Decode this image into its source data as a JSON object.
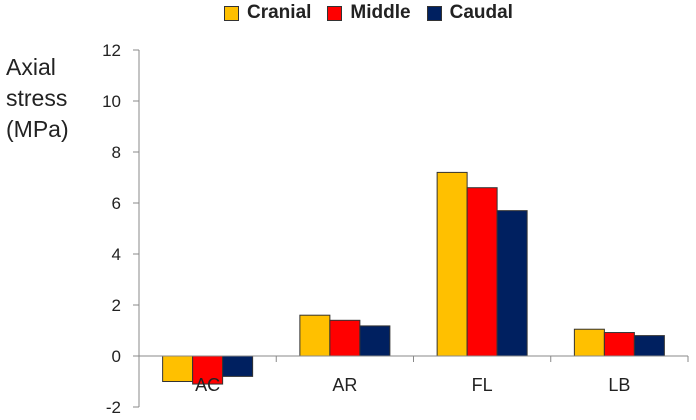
{
  "chart_data": {
    "type": "bar",
    "categories": [
      "AC",
      "AR",
      "FL",
      "LB"
    ],
    "series": [
      {
        "name": "Cranial",
        "color": "#FFC000",
        "values": [
          -1.0,
          1.6,
          7.2,
          1.05
        ]
      },
      {
        "name": "Middle",
        "color": "#FF0000",
        "values": [
          -1.1,
          1.4,
          6.6,
          0.92
        ]
      },
      {
        "name": "Caudal",
        "color": "#002060",
        "values": [
          -0.8,
          1.18,
          5.7,
          0.8
        ]
      }
    ],
    "ylabel_lines": [
      "Axial",
      "stress",
      "(MPa)"
    ],
    "ylim": [
      -2,
      12
    ],
    "yticks": [
      -2,
      0,
      2,
      4,
      6,
      8,
      10,
      12
    ],
    "legend_position": "top",
    "grid": false
  }
}
